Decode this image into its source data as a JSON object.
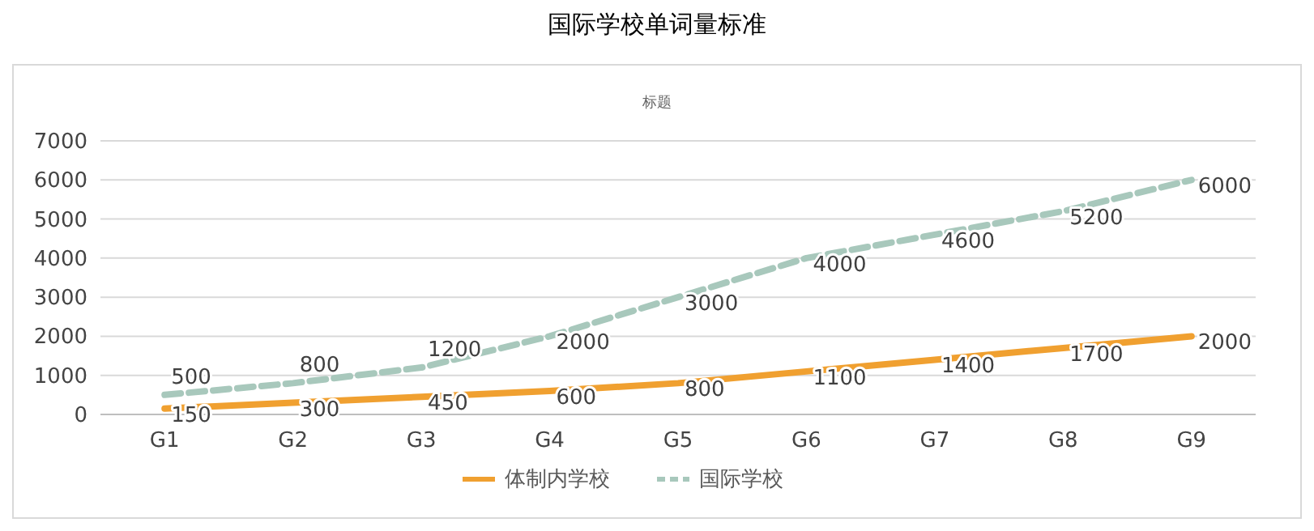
{
  "chart_data": {
    "type": "line",
    "title": "国际学校单词量标准",
    "subtitle": "标题",
    "categories": [
      "G1",
      "G2",
      "G3",
      "G4",
      "G5",
      "G6",
      "G7",
      "G8",
      "G9"
    ],
    "series": [
      {
        "name": "体制内学校",
        "color": "#f0a030",
        "line_style": "solid",
        "values": [
          150,
          300,
          450,
          600,
          800,
          1100,
          1400,
          1700,
          2000
        ]
      },
      {
        "name": "国际学校",
        "color": "#a8c8bc",
        "line_style": "dashed",
        "values": [
          500,
          800,
          1200,
          2000,
          3000,
          4000,
          4600,
          5200,
          6000
        ]
      }
    ],
    "ylim": [
      0,
      7000
    ],
    "yticks": [
      0,
      1000,
      2000,
      3000,
      4000,
      5000,
      6000,
      7000
    ],
    "grid": "y",
    "legend": "bottom",
    "data_labels": true,
    "marker": "none"
  }
}
